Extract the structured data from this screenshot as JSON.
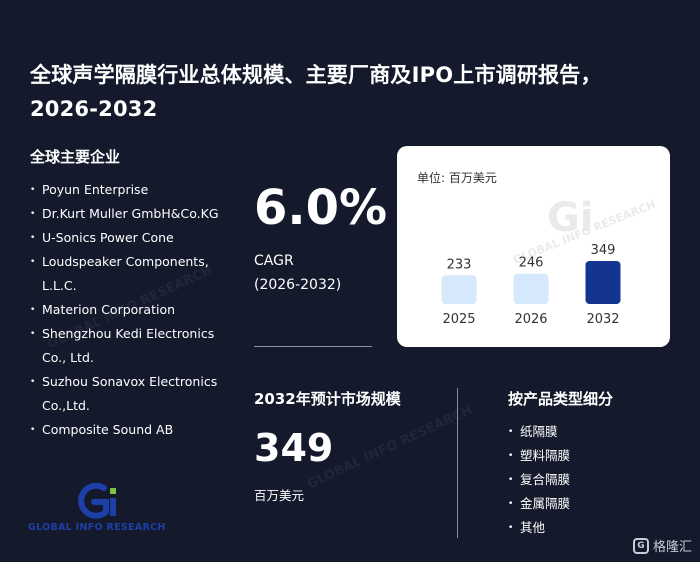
{
  "title": "全球声学隔膜行业总体规模、主要厂商及IPO上市调研报告，2026-2032",
  "companies": {
    "heading": "全球主要企业",
    "items": [
      "Poyun Enterprise",
      "Dr.Kurt Muller GmbH&Co.KG",
      "U-Sonics Power Cone",
      "Loudspeaker Components, L.L.C.",
      "Materion Corporation",
      "Shengzhou Kedi Electronics Co., Ltd.",
      "Suzhou Sonavox Electronics Co.,Ltd.",
      "Composite Sound AB"
    ]
  },
  "cagr": {
    "value": "6.0%",
    "label": "CAGR",
    "period": "(2026-2032)"
  },
  "market": {
    "heading": "2032年预计市场规模",
    "value": "349",
    "unit": "百万美元"
  },
  "segments": {
    "heading": "按产品类型细分",
    "items": [
      "纸隔膜",
      "塑料隔膜",
      "复合隔膜",
      "金属隔膜",
      "其他"
    ]
  },
  "logo": {
    "text": "GLOBAL INFO RESEARCH",
    "mark": "Gi"
  },
  "brand": {
    "name": "格隆汇"
  },
  "chart_data": {
    "type": "bar",
    "unit_label": "单位: 百万美元",
    "categories": [
      "2025",
      "2026",
      "2032"
    ],
    "values": [
      233,
      246,
      349
    ],
    "colors": [
      "#d6e8fb",
      "#d6e8fb",
      "#13348f"
    ],
    "title": "",
    "xlabel": "",
    "ylabel": "",
    "grid": false
  }
}
